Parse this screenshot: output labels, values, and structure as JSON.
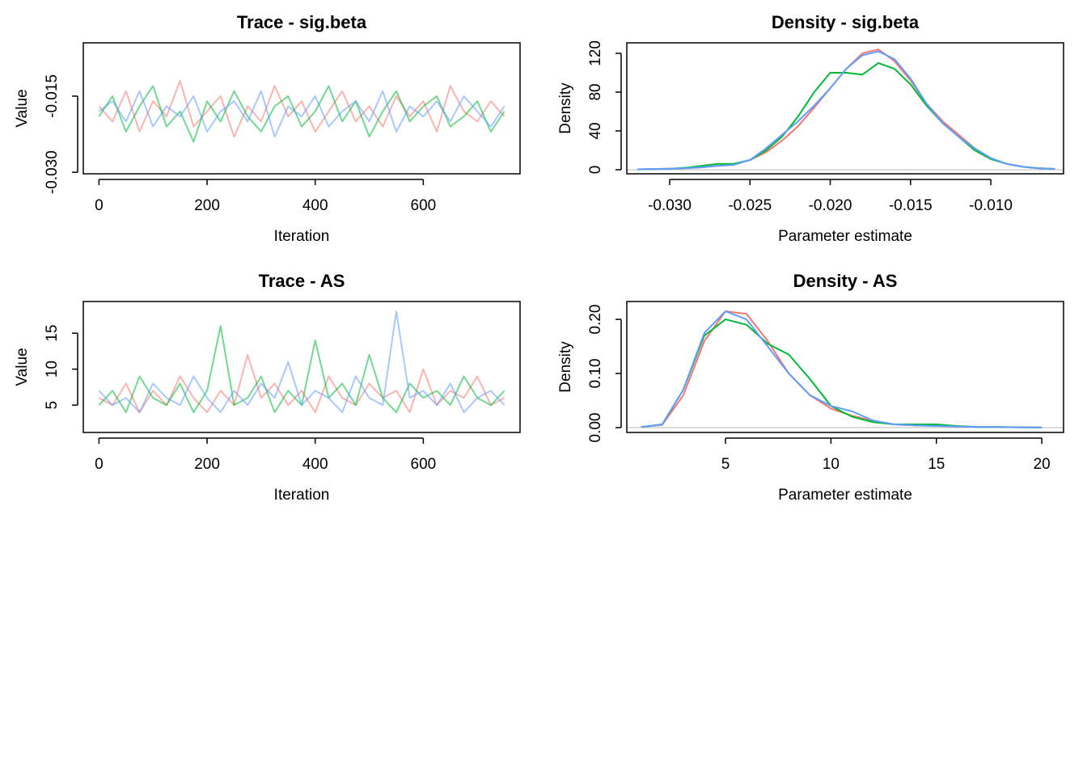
{
  "chart_data": [
    {
      "type": "line",
      "title": "Trace - sig.beta",
      "xlabel": "Iteration",
      "ylabel": "Value",
      "opacity": 0.55,
      "x": [
        0,
        25,
        50,
        75,
        100,
        125,
        150,
        175,
        200,
        225,
        250,
        275,
        300,
        325,
        350,
        375,
        400,
        425,
        450,
        475,
        500,
        525,
        550,
        575,
        600,
        625,
        650,
        675,
        700,
        725,
        750
      ],
      "series": [
        {
          "color": "#F8766D",
          "values": [
            -0.017,
            -0.02,
            -0.014,
            -0.022,
            -0.016,
            -0.019,
            -0.012,
            -0.021,
            -0.018,
            -0.015,
            -0.023,
            -0.017,
            -0.02,
            -0.013,
            -0.019,
            -0.016,
            -0.022,
            -0.018,
            -0.014,
            -0.02,
            -0.017,
            -0.021,
            -0.015,
            -0.019,
            -0.016,
            -0.022,
            -0.013,
            -0.018,
            -0.02,
            -0.016,
            -0.019
          ]
        },
        {
          "color": "#00BA38",
          "values": [
            -0.019,
            -0.015,
            -0.022,
            -0.017,
            -0.013,
            -0.021,
            -0.018,
            -0.024,
            -0.016,
            -0.02,
            -0.014,
            -0.019,
            -0.022,
            -0.017,
            -0.015,
            -0.021,
            -0.018,
            -0.013,
            -0.02,
            -0.016,
            -0.023,
            -0.018,
            -0.014,
            -0.02,
            -0.017,
            -0.015,
            -0.021,
            -0.019,
            -0.016,
            -0.022,
            -0.018
          ]
        },
        {
          "color": "#619CFF",
          "values": [
            -0.018,
            -0.016,
            -0.02,
            -0.014,
            -0.021,
            -0.017,
            -0.019,
            -0.015,
            -0.022,
            -0.018,
            -0.016,
            -0.02,
            -0.014,
            -0.023,
            -0.017,
            -0.019,
            -0.015,
            -0.021,
            -0.018,
            -0.016,
            -0.02,
            -0.014,
            -0.022,
            -0.017,
            -0.019,
            -0.016,
            -0.02,
            -0.015,
            -0.018,
            -0.021,
            -0.017
          ]
        }
      ],
      "xlim": [
        -29,
        779
      ],
      "xticks": [
        0,
        200,
        400,
        600
      ],
      "ylim": [
        -0.0303,
        -0.0045
      ],
      "yticks": [
        {
          "value": -0.03,
          "label": "-0.030"
        },
        -0.015
      ]
    },
    {
      "type": "line",
      "title": "Density - sig.beta",
      "xlabel": "Parameter estimate",
      "ylabel": "Density",
      "opacity": 1,
      "zero_line": true,
      "x": [
        -0.032,
        -0.031,
        -0.03,
        -0.029,
        -0.028,
        -0.027,
        -0.026,
        -0.025,
        -0.024,
        -0.023,
        -0.022,
        -0.021,
        -0.02,
        -0.019,
        -0.018,
        -0.017,
        -0.016,
        -0.015,
        -0.014,
        -0.013,
        -0.012,
        -0.011,
        -0.01,
        -0.009,
        -0.008,
        -0.007,
        -0.006
      ],
      "series": [
        {
          "color": "#F8766D",
          "values": [
            0.5,
            0.8,
            1,
            1.5,
            2.5,
            4,
            6,
            10,
            18,
            30,
            45,
            64,
            84,
            104,
            120,
            124,
            112,
            92,
            68,
            50,
            36,
            22,
            12,
            6,
            3,
            1.5,
            0.8
          ]
        },
        {
          "color": "#00BA38",
          "values": [
            0.3,
            0.6,
            1,
            2,
            4,
            6,
            6,
            10,
            20,
            34,
            55,
            80,
            100,
            100,
            98,
            110,
            104,
            88,
            66,
            48,
            34,
            20,
            11,
            6,
            3,
            1.5,
            0.8
          ]
        },
        {
          "color": "#619CFF",
          "values": [
            0.4,
            0.7,
            1,
            1.5,
            2.5,
            4,
            5,
            10,
            22,
            36,
            50,
            66,
            84,
            104,
            118,
            122,
            114,
            94,
            68,
            48,
            34,
            22,
            12,
            6,
            3,
            1.5,
            0.8
          ]
        }
      ],
      "xlim": [
        -0.03267,
        -0.00547
      ],
      "xticks": [
        {
          "value": -0.03,
          "label": "-0.030"
        },
        -0.025,
        {
          "value": -0.02,
          "label": "-0.020"
        },
        -0.015,
        {
          "value": -0.01,
          "label": "-0.010"
        }
      ],
      "ylim": [
        -4.2,
        130.8
      ],
      "yticks": [
        0,
        40,
        80,
        120
      ]
    },
    {
      "type": "line",
      "title": "Trace - AS",
      "xlabel": "Iteration",
      "ylabel": "Value",
      "opacity": 0.55,
      "x": [
        0,
        25,
        50,
        75,
        100,
        125,
        150,
        175,
        200,
        225,
        250,
        275,
        300,
        325,
        350,
        375,
        400,
        425,
        450,
        475,
        500,
        525,
        550,
        575,
        600,
        625,
        650,
        675,
        700,
        725,
        750
      ],
      "series": [
        {
          "color": "#F8766D",
          "values": [
            6,
            5,
            8,
            4,
            7,
            5,
            9,
            6,
            4,
            7,
            5,
            12,
            6,
            8,
            5,
            7,
            4,
            9,
            6,
            5,
            8,
            6,
            7,
            4,
            10,
            5,
            7,
            6,
            9,
            5,
            6
          ]
        },
        {
          "color": "#00BA38",
          "values": [
            5,
            7,
            4,
            9,
            6,
            5,
            8,
            4,
            7,
            16,
            5,
            6,
            9,
            4,
            7,
            5,
            14,
            6,
            8,
            5,
            12,
            6,
            4,
            8,
            6,
            7,
            5,
            9,
            6,
            5,
            7
          ]
        },
        {
          "color": "#619CFF",
          "values": [
            7,
            5,
            6,
            4,
            8,
            6,
            5,
            9,
            6,
            4,
            7,
            5,
            8,
            6,
            11,
            5,
            7,
            6,
            4,
            9,
            6,
            5,
            18,
            6,
            7,
            5,
            8,
            4,
            6,
            7,
            5
          ]
        }
      ],
      "xlim": [
        -29,
        779
      ],
      "xticks": [
        0,
        200,
        400,
        600
      ],
      "ylim": [
        1.2,
        19.4
      ],
      "yticks": [
        5,
        10,
        15
      ]
    },
    {
      "type": "line",
      "title": "Density - AS",
      "xlabel": "Parameter estimate",
      "ylabel": "Density",
      "opacity": 1,
      "zero_line": true,
      "x": [
        1,
        2,
        3,
        4,
        5,
        6,
        7,
        8,
        9,
        10,
        11,
        12,
        13,
        14,
        15,
        16,
        17,
        18,
        19,
        20
      ],
      "series": [
        {
          "color": "#F8766D",
          "values": [
            0.001,
            0.005,
            0.06,
            0.16,
            0.215,
            0.21,
            0.16,
            0.1,
            0.06,
            0.035,
            0.022,
            0.012,
            0.006,
            0.004,
            0.004,
            0.002,
            0.001,
            0.001,
            0.0005,
            0.0003
          ]
        },
        {
          "color": "#00BA38",
          "values": [
            0.001,
            0.006,
            0.07,
            0.17,
            0.2,
            0.19,
            0.155,
            0.135,
            0.09,
            0.04,
            0.02,
            0.01,
            0.006,
            0.006,
            0.006,
            0.003,
            0.001,
            0.001,
            0.0005,
            0.0002
          ]
        },
        {
          "color": "#619CFF",
          "values": [
            0.001,
            0.006,
            0.07,
            0.175,
            0.215,
            0.2,
            0.15,
            0.1,
            0.06,
            0.04,
            0.03,
            0.013,
            0.006,
            0.004,
            0.003,
            0.002,
            0.001,
            0.0007,
            0.0004,
            0.0002
          ]
        }
      ],
      "xlim": [
        0.32,
        21.03
      ],
      "xticks": [
        5,
        10,
        15,
        20
      ],
      "ylim": [
        -0.009,
        0.233
      ],
      "yticks": [
        {
          "value": 0,
          "label": "0.00"
        },
        {
          "value": 0.1,
          "label": "0.10"
        },
        {
          "value": 0.2,
          "label": "0.20"
        }
      ]
    }
  ]
}
